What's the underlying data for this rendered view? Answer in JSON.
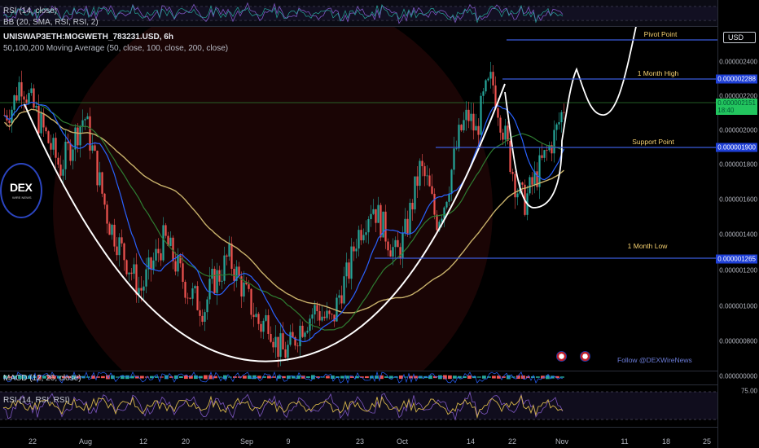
{
  "top_panes": {
    "rsi_label": "RSI (14, close)",
    "bb_label": "BB (20, SMA, RSI, RSI, 2)"
  },
  "main": {
    "symbol": "UNISWAP3ETH:MOGWETH_783231.USD, 6h",
    "ma_label": "50,100,200 Moving Average (50, close, 100, close, 200, close)",
    "currency_button": "USD",
    "logo_text": "DEX",
    "logo_subtext": "WIRE NEWS",
    "follow_text": "Follow @DEXWireNews"
  },
  "annotations": {
    "pivot": "Pivot Point",
    "month_high": "1 Month High",
    "support": "Support Point",
    "month_low": "1 Month Low"
  },
  "price_axis": {
    "ticks": [
      "0.000002400",
      "0.000002200",
      "0.000002000",
      "0.000001800",
      "0.000001600",
      "0.000001400",
      "0.000001200",
      "0.000001000",
      "0.000000800"
    ],
    "macd_tick": "0.000000000",
    "rsi_tick": "75.00",
    "tag_month_high": "0.000002288",
    "tag_current_price": "0.000002151",
    "tag_countdown": "18:40",
    "tag_support": "0.000001900",
    "tag_month_low": "0.000001265"
  },
  "bottom_panes": {
    "macd_label": "MACD (12, 26, close)",
    "rsi_label": "RSI (14, RSI, RSI)"
  },
  "time_axis": [
    "22",
    "Aug",
    "12",
    "20",
    "Sep",
    "9",
    "23",
    "Oct",
    "14",
    "22",
    "Nov",
    "11",
    "18",
    "25"
  ],
  "colors": {
    "candle_up": "#26a69a",
    "candle_down": "#ef5350",
    "ma50": "#2962ff",
    "ma100": "#2e7d32",
    "ma200": "#c9b26b",
    "level_line": "#3b5bdb",
    "annotation": "#f5d06f"
  },
  "chart_data": {
    "type": "candlestick",
    "title": "UNISWAP3ETH:MOGWETH_783231.USD, 6h",
    "close": [
      2.1e-06,
      2.15e-06,
      2.3e-06,
      2.2e-06,
      2.1e-06,
      2e-06,
      1.9e-06,
      1.8e-06,
      1.9e-06,
      2e-06,
      2.1e-06,
      1.9e-06,
      1.7e-06,
      1.5e-06,
      1.4e-06,
      1.3e-06,
      1.2e-06,
      1.1e-06,
      1.2e-06,
      1.3e-06,
      1.4e-06,
      1.3e-06,
      1.2e-06,
      1.1e-06,
      1.05e-06,
      1e-06,
      1.15e-06,
      1.2e-06,
      1.3e-06,
      1.2e-06,
      1.1e-06,
      1e-06,
      9e-07,
      9.5e-07,
      8e-07,
      7.5e-07,
      8e-07,
      9e-07,
      9.5e-07,
      1e-06,
      9.5e-07,
      9.2e-07,
      1.1e-06,
      1.2e-06,
      1.4e-06,
      1.5e-06,
      1.6e-06,
      1.5e-06,
      1.4e-06,
      1.3e-06,
      1.4e-06,
      1.6e-06,
      1.8e-06,
      1.7e-06,
      1.5e-06,
      1.6e-06,
      1.8e-06,
      2e-06,
      2.1e-06,
      2e-06,
      2.2e-06,
      2.3e-06,
      2.1e-06,
      1.9e-06,
      1.7e-06,
      1.6e-06,
      1.7e-06,
      1.8e-06,
      1.9e-06,
      2e-06,
      2.15e-06
    ],
    "ylim": [
      6.5e-07,
      2.6e-06
    ],
    "levels": [
      {
        "name": "Pivot Point",
        "value": 2.5e-06
      },
      {
        "name": "1 Month High",
        "value": 2.288e-06
      },
      {
        "name": "Support Point",
        "value": 1.9e-06
      },
      {
        "name": "1 Month Low",
        "value": 1.265e-06
      }
    ],
    "grid": false
  }
}
